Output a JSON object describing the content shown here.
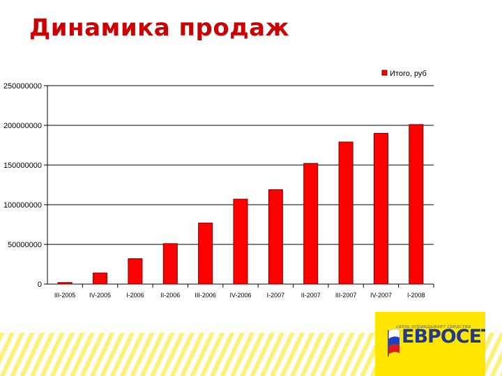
{
  "title": "Динамика продаж",
  "logo": {
    "slogan": "связь оправдывает средства",
    "brand": "ЕВРОСЕТЬ",
    "flag_colors": [
      "#ffffff",
      "#1f3fbf",
      "#e01a1a"
    ]
  },
  "colors": {
    "title": "#cc0000",
    "bar": "#ff0000",
    "bar_outline": "#7a0000",
    "background_stripes": "#fff176",
    "logo_bg": "#ffe600"
  },
  "chart_data": {
    "type": "bar",
    "categories": [
      "III-2005",
      "IV-2005",
      "I-2006",
      "II-2006",
      "III-2006",
      "IV-2006",
      "I-2007",
      "II-2007",
      "III-2007",
      "IV-2007",
      "I-2008"
    ],
    "series": [
      {
        "name": "Итого, руб",
        "values": [
          2000000,
          14000000,
          32000000,
          51000000,
          77000000,
          107000000,
          119000000,
          152000000,
          179000000,
          190000000,
          201000000
        ]
      }
    ],
    "ylim": [
      0,
      250000000
    ],
    "yticks": [
      0,
      50000000,
      100000000,
      150000000,
      200000000,
      250000000
    ],
    "ytick_labels": [
      "0",
      "50000000",
      "100000000",
      "150000000",
      "200000000",
      "250000000"
    ],
    "grid": true,
    "legend": "top-right"
  }
}
